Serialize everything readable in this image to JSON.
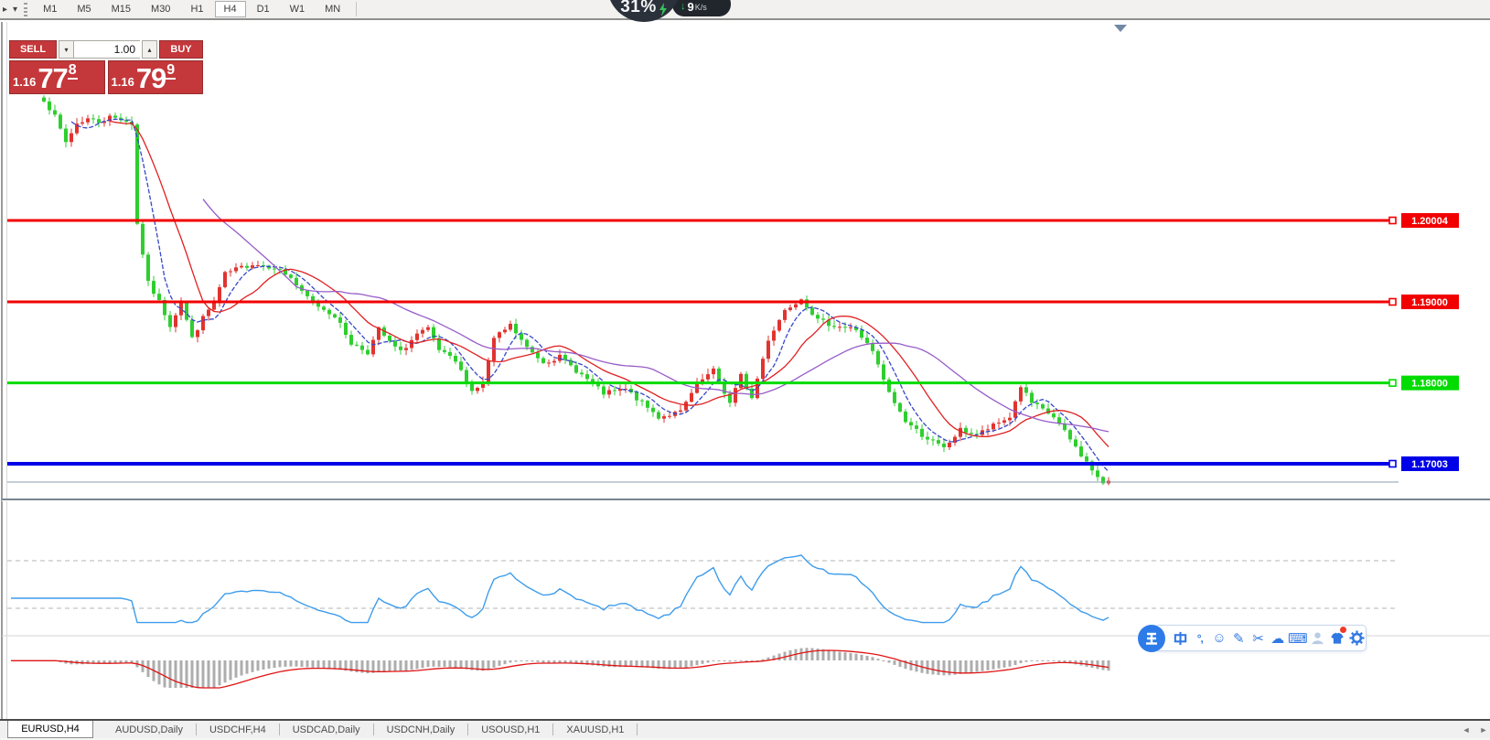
{
  "toolbar": {
    "timeframes": [
      {
        "label": "M1",
        "active": false
      },
      {
        "label": "M5",
        "active": false
      },
      {
        "label": "M15",
        "active": false
      },
      {
        "label": "M30",
        "active": false
      },
      {
        "label": "H1",
        "active": false
      },
      {
        "label": "H4",
        "active": true
      },
      {
        "label": "D1",
        "active": false
      },
      {
        "label": "W1",
        "active": false
      },
      {
        "label": "MN",
        "active": false
      }
    ],
    "left_arrow": "▸",
    "dropdown_arrow": "▾"
  },
  "overlay": {
    "percent": "31%",
    "speed": "9",
    "unit": "K/s",
    "down_arrow": "↓"
  },
  "trade_panel": {
    "sell_label": "SELL",
    "buy_label": "BUY",
    "volume": "1.00",
    "spin_down": "▾",
    "spin_up": "▴",
    "sell_price": {
      "prefix": "1.16",
      "big": "77",
      "sup": "8"
    },
    "buy_price": {
      "prefix": "1.16",
      "big": "79",
      "sup": "9"
    }
  },
  "chart_data": {
    "type": "candlestick+indicators",
    "symbol": "EURUSD",
    "timeframe": "H4",
    "candles": {
      "count": 195,
      "anchors": [
        [
          0,
          1.215
        ],
        [
          2,
          1.2128
        ],
        [
          4,
          1.2097
        ],
        [
          6,
          1.212
        ],
        [
          8,
          1.2126
        ],
        [
          10,
          1.2122
        ],
        [
          12,
          1.2128
        ],
        [
          14,
          1.2126
        ],
        [
          16,
          1.212
        ],
        [
          17,
          1.1996
        ],
        [
          19,
          1.1923
        ],
        [
          21,
          1.19
        ],
        [
          23,
          1.1871
        ],
        [
          25,
          1.19
        ],
        [
          27,
          1.1855
        ],
        [
          29,
          1.188
        ],
        [
          31,
          1.19
        ],
        [
          33,
          1.1934
        ],
        [
          35,
          1.194
        ],
        [
          38,
          1.1947
        ],
        [
          42,
          1.1943
        ],
        [
          45,
          1.193
        ],
        [
          47,
          1.1911
        ],
        [
          50,
          1.1895
        ],
        [
          53,
          1.1883
        ],
        [
          56,
          1.1849
        ],
        [
          59,
          1.1838
        ],
        [
          61,
          1.1866
        ],
        [
          63,
          1.185
        ],
        [
          65,
          1.1838
        ],
        [
          68,
          1.186
        ],
        [
          70,
          1.1866
        ],
        [
          72,
          1.184
        ],
        [
          75,
          1.1826
        ],
        [
          78,
          1.179
        ],
        [
          80,
          1.18
        ],
        [
          82,
          1.1854
        ],
        [
          85,
          1.1871
        ],
        [
          88,
          1.1843
        ],
        [
          91,
          1.1826
        ],
        [
          94,
          1.1832
        ],
        [
          98,
          1.181
        ],
        [
          102,
          1.1787
        ],
        [
          106,
          1.1792
        ],
        [
          109,
          1.1775
        ],
        [
          112,
          1.1758
        ],
        [
          116,
          1.1764
        ],
        [
          119,
          1.1798
        ],
        [
          122,
          1.1815
        ],
        [
          125,
          1.1775
        ],
        [
          127,
          1.1809
        ],
        [
          129,
          1.1781
        ],
        [
          132,
          1.1854
        ],
        [
          135,
          1.189
        ],
        [
          138,
          1.1905
        ],
        [
          141,
          1.1877
        ],
        [
          144,
          1.1871
        ],
        [
          148,
          1.1866
        ],
        [
          151,
          1.1838
        ],
        [
          154,
          1.1787
        ],
        [
          157,
          1.1753
        ],
        [
          160,
          1.1736
        ],
        [
          164,
          1.1719
        ],
        [
          167,
          1.1742
        ],
        [
          170,
          1.1736
        ],
        [
          173,
          1.1747
        ],
        [
          176,
          1.1758
        ],
        [
          178,
          1.1796
        ],
        [
          180,
          1.1775
        ],
        [
          184,
          1.1758
        ],
        [
          187,
          1.173
        ],
        [
          190,
          1.1702
        ],
        [
          193,
          1.1674
        ],
        [
          194,
          1.168
        ]
      ],
      "up_color": "#e13430",
      "down_color": "#2fce2f"
    },
    "moving_averages": [
      {
        "period": 6,
        "color": "#3648c8",
        "style": "dashed"
      },
      {
        "period": 13,
        "color": "#e02020",
        "style": "solid"
      },
      {
        "period": 30,
        "color": "#975cc8",
        "style": "solid"
      }
    ],
    "horizontal_lines": [
      {
        "label": "1.20004",
        "price": 1.20004,
        "color": "#f20000",
        "width": 3
      },
      {
        "label": "1.19000",
        "price": 1.19,
        "color": "#f20000",
        "width": 3
      },
      {
        "label": "1.18000",
        "price": 1.18,
        "color": "#00dc00",
        "width": 3
      },
      {
        "label": "1.17003",
        "price": 1.17003,
        "color": "#0000e8",
        "width": 4
      }
    ],
    "bid_line": {
      "price": 1.16778,
      "color": "#8e9cad"
    },
    "rsi": {
      "period": 14,
      "levels": [
        70,
        30
      ],
      "color": "#3e9cec",
      "level_color": "#b4b4b4"
    },
    "macd": {
      "fast": 12,
      "slow": 26,
      "signal": 9,
      "bar_color": "#adadad",
      "signal_color": "#e01414"
    }
  },
  "tabs": [
    {
      "label": "EURUSD,H4",
      "active": true
    },
    {
      "label": "AUDUSD,Daily",
      "active": false
    },
    {
      "label": "USDCHF,H4",
      "active": false
    },
    {
      "label": "USDCAD,Daily",
      "active": false
    },
    {
      "label": "USDCNH,Daily",
      "active": false
    },
    {
      "label": "USOUSD,H1",
      "active": false
    },
    {
      "label": "XAUUSD,H1",
      "active": false
    }
  ],
  "tabbar": {
    "scroll_left": "◄",
    "scroll_right": "►"
  },
  "ime": {
    "icons": [
      {
        "name": "sogou-logo",
        "glyph": "王"
      },
      {
        "name": "chinese-mode",
        "glyph": "中"
      },
      {
        "name": "punctuation",
        "glyph": "°,"
      },
      {
        "name": "emoji",
        "glyph": "☺"
      },
      {
        "name": "handwriting",
        "glyph": "✎"
      },
      {
        "name": "scissors",
        "glyph": "✂"
      },
      {
        "name": "cloud",
        "glyph": "☁"
      },
      {
        "name": "keyboard",
        "glyph": "⌨"
      },
      {
        "name": "account",
        "glyph": "person"
      },
      {
        "name": "skin",
        "glyph": "shirt"
      },
      {
        "name": "settings",
        "glyph": "gear"
      }
    ]
  }
}
